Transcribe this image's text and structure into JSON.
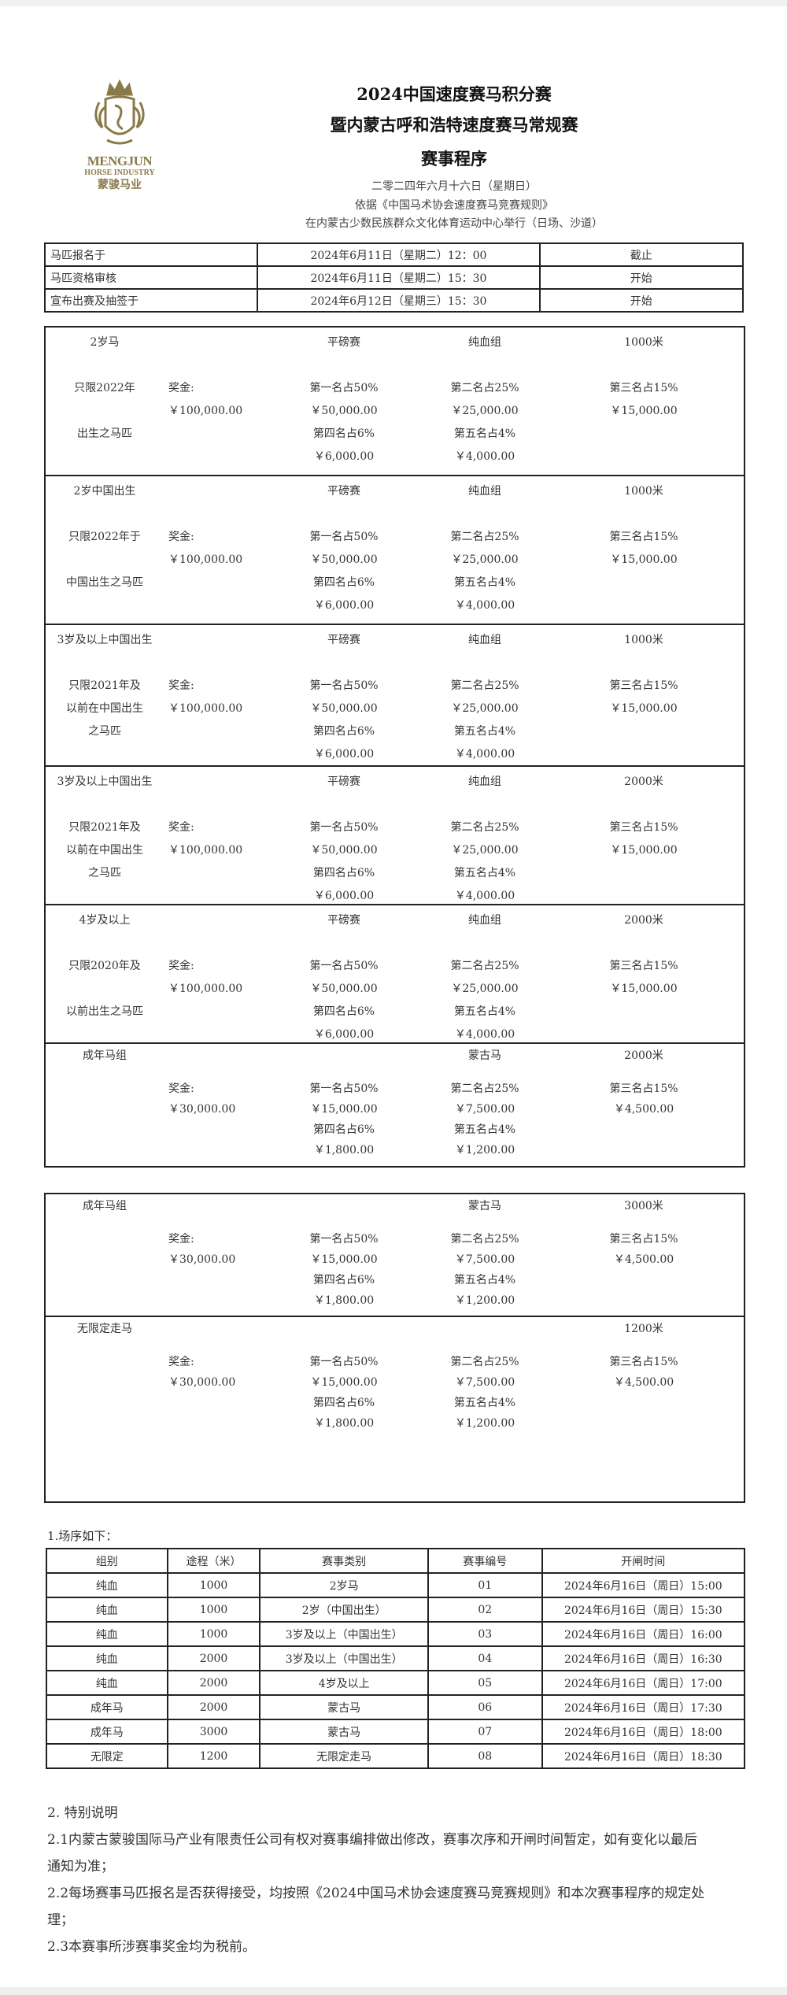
{
  "logo": {
    "name_en": "MENGJUN",
    "sub_en": "HORSE INDUSTRY",
    "name_cn": "蒙骏马业",
    "color": "#8a7a4a"
  },
  "header": {
    "title1": "2024中国速度赛马积分赛",
    "title2": "暨内蒙古呼和浩特速度赛马常规赛",
    "title3": "赛事程序",
    "date": "二零二四年六月十六日（星期日）",
    "basis": "依据《中国马术协会速度赛马竞赛规则》",
    "venue": "在内蒙古少数民族群众文化体育运动中心举行（日场、沙道）"
  },
  "registration": [
    {
      "item": "马匹报名于",
      "time": "2024年6月11日（星期二）12：00",
      "status": "截止"
    },
    {
      "item": "马匹资格审核",
      "time": "2024年6月11日（星期二）15：30",
      "status": "开始"
    },
    {
      "item": "宣布出赛及抽签于",
      "time": "2024年6月12日（星期三）15：30",
      "status": "开始"
    }
  ],
  "races": [
    {
      "name": "2岁马",
      "type": "平磅赛",
      "group": "纯血组",
      "distance": "1000米",
      "desc": [
        "只限2022年",
        "",
        "出生之马匹"
      ],
      "prize_label": "奖金:",
      "total": "￥100,000.00",
      "p1": "第一名占50%",
      "a1": "￥50,000.00",
      "p2": "第二名占25%",
      "a2": "￥25,000.00",
      "p3": "第三名占15%",
      "a3": "￥15,000.00",
      "p4": "第四名占6%",
      "a4": "￥6,000.00",
      "p5": "第五名占4%",
      "a5": "￥4,000.00"
    },
    {
      "name": "2岁中国出生",
      "type": "平磅赛",
      "group": "纯血组",
      "distance": "1000米",
      "desc": [
        "只限2022年于",
        "",
        "中国出生之马匹"
      ],
      "prize_label": "奖金:",
      "total": "￥100,000.00",
      "p1": "第一名占50%",
      "a1": "￥50,000.00",
      "p2": "第二名占25%",
      "a2": "￥25,000.00",
      "p3": "第三名占15%",
      "a3": "￥15,000.00",
      "p4": "第四名占6%",
      "a4": "￥6,000.00",
      "p5": "第五名占4%",
      "a5": "￥4,000.00"
    },
    {
      "name": "3岁及以上中国出生",
      "type": "平磅赛",
      "group": "纯血组",
      "distance": "1000米",
      "desc": [
        "只限2021年及",
        "以前在中国出生",
        "之马匹"
      ],
      "prize_label": "奖金:",
      "total": "￥100,000.00",
      "p1": "第一名占50%",
      "a1": "￥50,000.00",
      "p2": "第二名占25%",
      "a2": "￥25,000.00",
      "p3": "第三名占15%",
      "a3": "￥15,000.00",
      "p4": "第四名占6%",
      "a4": "￥6,000.00",
      "p5": "第五名占4%",
      "a5": "￥4,000.00"
    },
    {
      "name": "3岁及以上中国出生",
      "type": "平磅赛",
      "group": "纯血组",
      "distance": "2000米",
      "desc": [
        "只限2021年及",
        "以前在中国出生",
        "之马匹"
      ],
      "prize_label": "奖金:",
      "total": "￥100,000.00",
      "p1": "第一名占50%",
      "a1": "￥50,000.00",
      "p2": "第二名占25%",
      "a2": "￥25,000.00",
      "p3": "第三名占15%",
      "a3": "￥15,000.00",
      "p4": "第四名占6%",
      "a4": "￥6,000.00",
      "p5": "第五名占4%",
      "a5": "￥4,000.00"
    },
    {
      "name": "4岁及以上",
      "type": "平磅赛",
      "group": "纯血组",
      "distance": "2000米",
      "desc": [
        "只限2020年及",
        "",
        "以前出生之马匹"
      ],
      "prize_label": "奖金:",
      "total": "￥100,000.00",
      "p1": "第一名占50%",
      "a1": "￥50,000.00",
      "p2": "第二名占25%",
      "a2": "￥25,000.00",
      "p3": "第三名占15%",
      "a3": "￥15,000.00",
      "p4": "第四名占6%",
      "a4": "￥6,000.00",
      "p5": "第五名占4%",
      "a5": "￥4,000.00"
    },
    {
      "name": "成年马组",
      "type": "",
      "group": "蒙古马",
      "distance": "2000米",
      "desc": [
        "",
        "",
        ""
      ],
      "prize_label": "奖金:",
      "total": "￥30,000.00",
      "p1": "第一名占50%",
      "a1": "￥15,000.00",
      "p2": "第二名占25%",
      "a2": "￥7,500.00",
      "p3": "第三名占15%",
      "a3": "￥4,500.00",
      "p4": "第四名占6%",
      "a4": "￥1,800.00",
      "p5": "第五名占4%",
      "a5": "￥1,200.00"
    },
    {
      "name": "成年马组",
      "type": "",
      "group": "蒙古马",
      "distance": "3000米",
      "desc": [
        "",
        "",
        ""
      ],
      "prize_label": "奖金:",
      "total": "￥30,000.00",
      "p1": "第一名占50%",
      "a1": "￥15,000.00",
      "p2": "第二名占25%",
      "a2": "￥7,500.00",
      "p3": "第三名占15%",
      "a3": "￥4,500.00",
      "p4": "第四名占6%",
      "a4": "￥1,800.00",
      "p5": "第五名占4%",
      "a5": "￥1,200.00"
    },
    {
      "name": "无限定走马",
      "type": "",
      "group": "",
      "distance": "1200米",
      "desc": [
        "",
        "",
        ""
      ],
      "prize_label": "奖金:",
      "total": "￥30,000.00",
      "p1": "第一名占50%",
      "a1": "￥15,000.00",
      "p2": "第二名占25%",
      "a2": "￥7,500.00",
      "p3": "第三名占15%",
      "a3": "￥4,500.00",
      "p4": "第四名占6%",
      "a4": "￥1,800.00",
      "p5": "第五名占4%",
      "a5": "￥1,200.00"
    }
  ],
  "schedule": {
    "label": "1.场序如下：",
    "headers": [
      "组别",
      "途程（米）",
      "赛事类别",
      "赛事编号",
      "开闸时间"
    ],
    "rows": [
      [
        "纯血",
        "1000",
        "2岁马",
        "01",
        "2024年6月16日（周日）15:00"
      ],
      [
        "纯血",
        "1000",
        "2岁（中国出生）",
        "02",
        "2024年6月16日（周日）15:30"
      ],
      [
        "纯血",
        "1000",
        "3岁及以上（中国出生）",
        "03",
        "2024年6月16日（周日）16:00"
      ],
      [
        "纯血",
        "2000",
        "3岁及以上（中国出生）",
        "04",
        "2024年6月16日（周日）16:30"
      ],
      [
        "纯血",
        "2000",
        "4岁及以上",
        "05",
        "2024年6月16日（周日）17:00"
      ],
      [
        "成年马",
        "2000",
        "蒙古马",
        "06",
        "2024年6月16日（周日）17:30"
      ],
      [
        "成年马",
        "3000",
        "蒙古马",
        "07",
        "2024年6月16日（周日）18:00"
      ],
      [
        "无限定",
        "1200",
        "无限定走马",
        "08",
        "2024年6月16日（周日）18:30"
      ]
    ]
  },
  "notes": {
    "heading": "2. 特别说明",
    "items": [
      "2.1内蒙古蒙骏国际马产业有限责任公司有权对赛事编排做出修改，赛事次序和开闸时间暂定，如有变化以最后通知为准；",
      "2.2每场赛事马匹报名是否获得接受，均按照《2024中国马术协会速度赛马竞赛规则》和本次赛事程序的规定处理；",
      "2.3本赛事所涉赛事奖金均为税前。"
    ]
  }
}
